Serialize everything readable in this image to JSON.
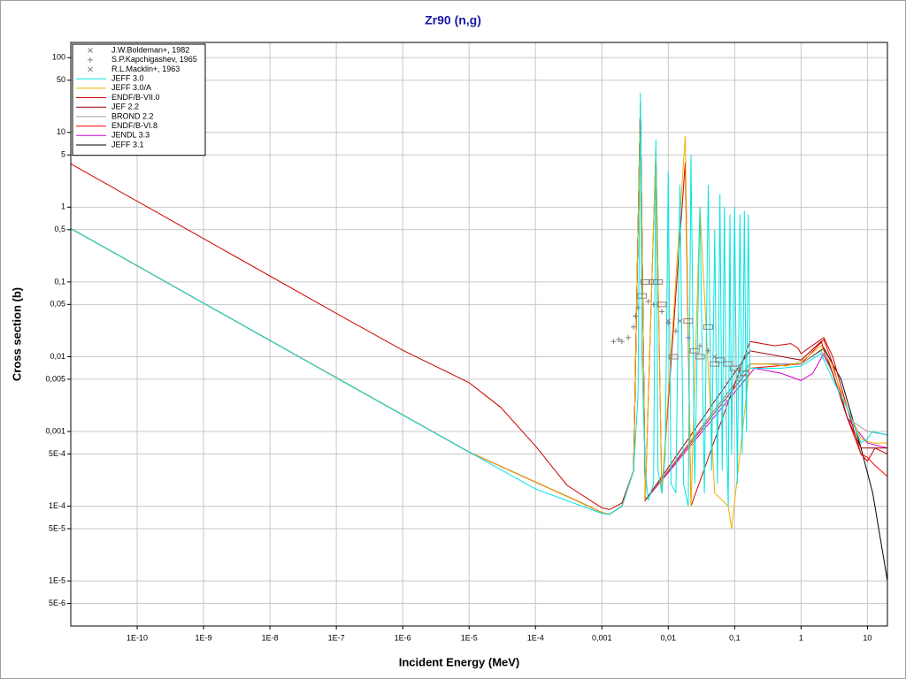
{
  "chart_data": {
    "type": "line",
    "title": "Zr90 (n,g)",
    "x_label": "Incident Energy (MeV)",
    "y_label": "Cross section (b)",
    "log_x": true,
    "log_y": true,
    "grid": true,
    "legend": "top-left",
    "xlim": [
      1e-11,
      20
    ],
    "ylim": [
      2.5e-06,
      160
    ],
    "xticks": [
      {
        "value": 1e-10,
        "label": "1E-10"
      },
      {
        "value": 1e-09,
        "label": "1E-9"
      },
      {
        "value": 1e-08,
        "label": "1E-8"
      },
      {
        "value": 1e-07,
        "label": "1E-7"
      },
      {
        "value": 1e-06,
        "label": "1E-6"
      },
      {
        "value": 1e-05,
        "label": "1E-5"
      },
      {
        "value": 0.0001,
        "label": "1E-4"
      },
      {
        "value": 0.001,
        "label": "0,001"
      },
      {
        "value": 0.01,
        "label": "0,01"
      },
      {
        "value": 0.1,
        "label": "0,1"
      },
      1,
      10
    ],
    "yticks": [
      100,
      50,
      10,
      5,
      1,
      {
        "value": 0.5,
        "label": "0,5"
      },
      {
        "value": 0.1,
        "label": "0,1"
      },
      {
        "value": 0.05,
        "label": "0,05"
      },
      {
        "value": 0.01,
        "label": "0,01"
      },
      {
        "value": 0.005,
        "label": "0,005"
      },
      {
        "value": 0.001,
        "label": "0,001"
      },
      {
        "value": 0.0005,
        "label": "5E-4"
      },
      {
        "value": 0.0001,
        "label": "1E-4"
      },
      {
        "value": 5e-05,
        "label": "5E-5"
      },
      {
        "value": 1e-05,
        "label": "1E-5"
      },
      {
        "value": 5e-06,
        "label": "5E-6"
      }
    ],
    "series": [
      {
        "name": "J.W.Boldeman+, 1982",
        "marker": "square",
        "color": "#808080",
        "x": [
          0.004,
          0.0045,
          0.006,
          0.007,
          0.008,
          0.012,
          0.02,
          0.025,
          0.03,
          0.04,
          0.05,
          0.06,
          0.08,
          0.1,
          0.14
        ],
        "values": [
          0.065,
          0.1,
          0.1,
          0.1,
          0.05,
          0.01,
          0.03,
          0.012,
          0.01,
          0.025,
          0.008,
          0.009,
          0.008,
          0.007,
          0.006
        ]
      },
      {
        "name": "S.P.Kapchigashev, 1965",
        "marker": "plus",
        "color": "#808080",
        "x": [
          0.0015,
          0.0018,
          0.002,
          0.0025,
          0.003,
          0.0032,
          0.0035,
          0.005,
          0.006,
          0.008,
          0.01,
          0.013,
          0.02,
          0.03,
          0.04
        ],
        "values": [
          0.016,
          0.017,
          0.016,
          0.018,
          0.025,
          0.035,
          0.045,
          0.055,
          0.05,
          0.04,
          0.028,
          0.022,
          0.018,
          0.014,
          0.012
        ]
      },
      {
        "name": "R.L.Macklin+, 1963",
        "marker": "cross",
        "color": "#808080",
        "x": [
          0.01,
          0.015,
          0.05
        ],
        "values": [
          0.03,
          0.03,
          0.01
        ]
      },
      {
        "name": "JEFF 3.0",
        "color": "#00e5e5",
        "x": [
          1e-11,
          1e-10,
          1e-09,
          1e-08,
          1e-07,
          1e-06,
          1e-05,
          0.0001,
          0.001,
          0.0013,
          0.002,
          0.003,
          0.0035,
          0.0038,
          0.004,
          0.0045,
          0.005,
          0.006,
          0.0065,
          0.007,
          0.008,
          0.009,
          0.01,
          0.011,
          0.013,
          0.015,
          0.017,
          0.02,
          0.022,
          0.025,
          0.03,
          0.035,
          0.04,
          0.045,
          0.05,
          0.055,
          0.06,
          0.065,
          0.07,
          0.075,
          0.08,
          0.085,
          0.09,
          0.1,
          0.11,
          0.12,
          0.13,
          0.14,
          0.15,
          0.16,
          0.17,
          0.5,
          1,
          2,
          3,
          5,
          8,
          10,
          12,
          20
        ],
        "values": [
          0.52,
          0.165,
          0.052,
          0.0165,
          0.0052,
          0.00165,
          0.00053,
          0.00017,
          8e-05,
          7.8e-05,
          0.0001,
          0.0003,
          0.003,
          34,
          0.01,
          0.0003,
          0.00012,
          0.0002,
          8,
          0.0003,
          0.00015,
          0.0005,
          3,
          0.0002,
          0.00015,
          2,
          0.0002,
          0.0001,
          5,
          0.0002,
          1,
          0.00015,
          2,
          0.0003,
          0.5,
          0.0002,
          1.5,
          0.0003,
          1,
          0.001,
          0.0001,
          0.8,
          0.0005,
          1,
          0.0002,
          0.8,
          0.0005,
          0.9,
          0.001,
          0.8,
          0.007,
          0.007,
          0.0075,
          0.011,
          0.005,
          0.002,
          0.0007,
          0.0008,
          0.001,
          0.0009
        ]
      },
      {
        "name": "JEFF 3.0/A",
        "color": "#f0b000",
        "x": [
          1e-11,
          1e-08,
          1e-05,
          0.0005,
          0.001,
          0.0013,
          0.002,
          0.003,
          0.0038,
          0.0045,
          0.0065,
          0.008,
          0.018,
          0.022,
          0.03,
          0.05,
          0.08,
          0.09,
          0.17,
          0.3,
          0.6,
          1,
          2,
          3,
          5,
          8,
          12,
          20
        ],
        "values": [
          0.52,
          0.0165,
          0.00053,
          0.00011,
          8.2e-05,
          7.8e-05,
          0.0001,
          0.0003,
          25,
          0.00012,
          6,
          0.00015,
          9,
          0.0001,
          1,
          0.00015,
          0.0001,
          5e-05,
          0.008,
          0.008,
          0.0075,
          0.0085,
          0.014,
          0.007,
          0.002,
          0.0008,
          0.0007,
          0.0007
        ]
      },
      {
        "name": "ENDF/B-VII.0",
        "color": "#d00000",
        "x": [
          1e-11,
          1e-09,
          1e-07,
          1e-06,
          1e-05,
          3e-05,
          0.0001,
          0.0003,
          0.001,
          0.0013,
          0.002,
          0.003,
          0.0038,
          0.0045,
          0.0065,
          0.008,
          0.018,
          0.022,
          0.17,
          0.4,
          0.7,
          0.9,
          1,
          1.3,
          2.2,
          3,
          5,
          8,
          10,
          13,
          20
        ],
        "values": [
          3.8,
          0.38,
          0.038,
          0.0122,
          0.0045,
          0.0021,
          0.00064,
          0.00019,
          9.5e-05,
          9e-05,
          0.00011,
          0.0003,
          25,
          0.00012,
          6,
          0.00015,
          4,
          0.0001,
          0.016,
          0.014,
          0.015,
          0.013,
          0.011,
          0.013,
          0.018,
          0.01,
          0.002,
          0.0005,
          0.0004,
          0.0006,
          0.0005
        ]
      },
      {
        "name": "JEF 2.2",
        "color": "#a00000",
        "x": [
          1e-11,
          1e-08,
          1e-05,
          0.0005,
          0.001,
          0.0013,
          0.002,
          0.003,
          0.0038,
          0.0045,
          0.17,
          1,
          2,
          3,
          5,
          8,
          20
        ],
        "values": [
          0.52,
          0.0165,
          0.00053,
          0.00011,
          8.2e-05,
          7.8e-05,
          0.0001,
          0.0003,
          25,
          0.00012,
          0.012,
          0.009,
          0.016,
          0.006,
          0.0015,
          0.0006,
          0.0006
        ]
      },
      {
        "name": "BROND 2.2",
        "color": "#a0a0a0",
        "x": [
          1e-11,
          1e-08,
          1e-05,
          0.0005,
          0.001,
          0.0013,
          0.002,
          0.003,
          0.0038,
          0.0045,
          0.17,
          1,
          2,
          3,
          5,
          10,
          20
        ],
        "values": [
          0.52,
          0.0165,
          0.00053,
          0.00011,
          8.2e-05,
          7.8e-05,
          0.0001,
          0.0003,
          25,
          0.00012,
          0.008,
          0.008,
          0.012,
          0.006,
          0.0015,
          0.001,
          0.0009
        ]
      },
      {
        "name": "ENDF/B-VI.8",
        "color": "#ff0000",
        "x": [
          1e-11,
          1e-08,
          1e-05,
          0.0005,
          0.001,
          0.0013,
          0.002,
          0.003,
          0.0038,
          0.0045,
          0.17,
          1,
          2.2,
          3,
          5,
          8,
          10,
          13,
          20
        ],
        "values": [
          0.52,
          0.0165,
          0.00053,
          0.00011,
          8.2e-05,
          7.8e-05,
          0.0001,
          0.0003,
          25,
          0.00012,
          0.007,
          0.008,
          0.017,
          0.008,
          0.0015,
          0.0005,
          0.00045,
          0.00035,
          0.00025
        ]
      },
      {
        "name": "JENDL 3.3",
        "color": "#d000d0",
        "x": [
          1e-11,
          1e-08,
          1e-05,
          0.0005,
          0.001,
          0.0013,
          0.002,
          0.003,
          0.0038,
          0.0045,
          0.2,
          0.5,
          1,
          1.5,
          2.2,
          3,
          5,
          10,
          20
        ],
        "values": [
          0.52,
          0.0165,
          0.00053,
          0.00011,
          8.2e-05,
          7.8e-05,
          0.0001,
          0.0003,
          25,
          0.00012,
          0.007,
          0.006,
          0.0048,
          0.006,
          0.011,
          0.006,
          0.0015,
          0.0007,
          0.0006
        ]
      },
      {
        "name": "JEFF 3.1",
        "color": "#000000",
        "x": [
          1e-11,
          1e-08,
          1e-05,
          0.0005,
          0.001,
          0.0013,
          0.002,
          0.003,
          0.0038,
          0.0045,
          0.17,
          1,
          2.2,
          4,
          8,
          12,
          20
        ],
        "values": [
          0.52,
          0.0165,
          0.00053,
          0.00011,
          8.2e-05,
          7.8e-05,
          0.0001,
          0.0003,
          25,
          0.00012,
          0.008,
          0.008,
          0.013,
          0.005,
          0.0006,
          0.00015,
          1e-05
        ]
      }
    ]
  }
}
